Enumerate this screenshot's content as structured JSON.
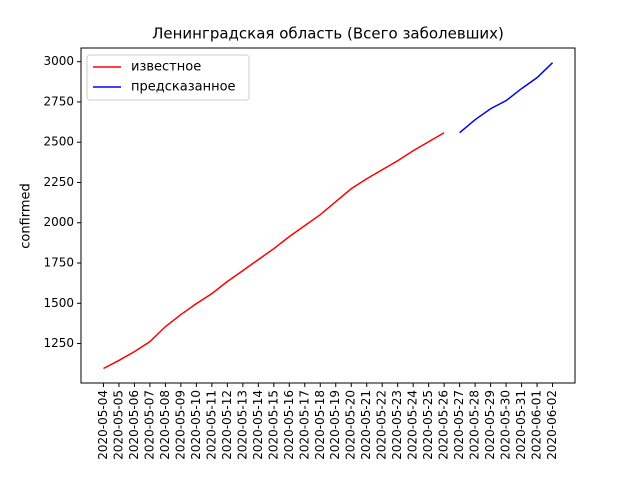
{
  "chart_data": {
    "type": "line",
    "title": "Ленинградская область (Всего заболевших)",
    "y_label": "confirmed",
    "categories": [
      "2020-05-04",
      "2020-05-05",
      "2020-05-06",
      "2020-05-07",
      "2020-05-08",
      "2020-05-09",
      "2020-05-10",
      "2020-05-11",
      "2020-05-12",
      "2020-05-13",
      "2020-05-14",
      "2020-05-15",
      "2020-05-16",
      "2020-05-17",
      "2020-05-18",
      "2020-05-19",
      "2020-05-20",
      "2020-05-21",
      "2020-05-22",
      "2020-05-23",
      "2020-05-24",
      "2020-05-25",
      "2020-05-26",
      "2020-05-27",
      "2020-05-28",
      "2020-05-29",
      "2020-05-30",
      "2020-05-31",
      "2020-06-01",
      "2020-06-02"
    ],
    "series": [
      {
        "name": "известное",
        "color": "#ff0000",
        "values": [
          1095,
          1145,
          1200,
          1262,
          1355,
          1430,
          1498,
          1560,
          1635,
          1703,
          1771,
          1839,
          1914,
          1982,
          2050,
          2131,
          2211,
          2273,
          2329,
          2385,
          2447,
          2503,
          2559,
          null,
          null,
          null,
          null,
          null,
          null,
          null
        ]
      },
      {
        "name": "предсказанное",
        "color": "#0000ff",
        "values": [
          null,
          null,
          null,
          null,
          null,
          null,
          null,
          null,
          null,
          null,
          null,
          null,
          null,
          null,
          null,
          null,
          null,
          null,
          null,
          null,
          null,
          null,
          null,
          2559,
          2640,
          2708,
          2758,
          2833,
          2901,
          2994
        ]
      }
    ],
    "ylim": [
      1005,
      3085
    ],
    "yticks": [
      1250,
      1500,
      1750,
      2000,
      2250,
      2500,
      2750,
      3000
    ],
    "legend": "upper left"
  }
}
